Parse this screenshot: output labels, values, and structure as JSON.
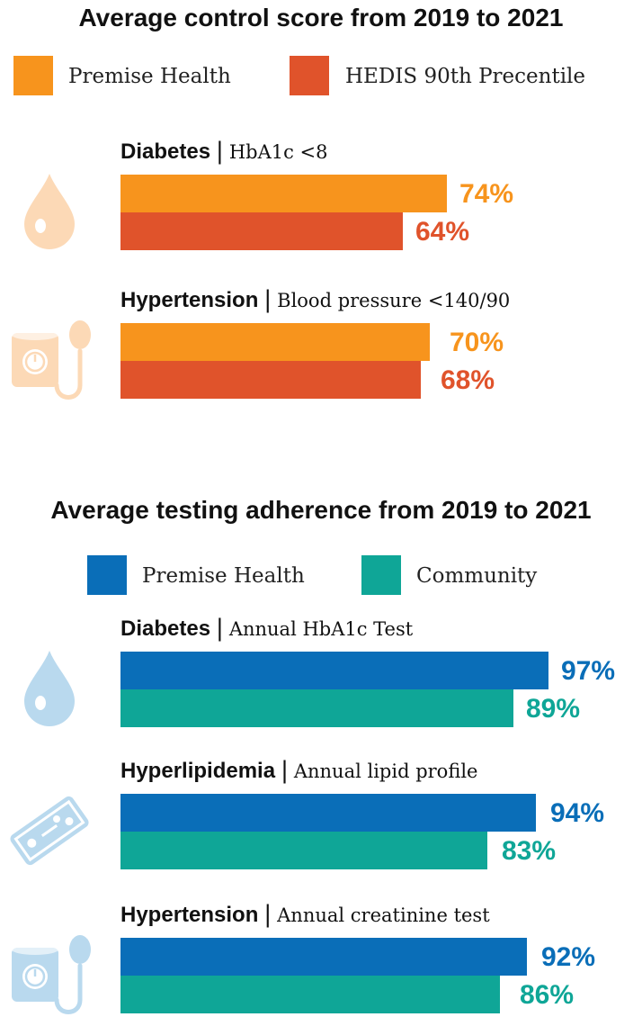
{
  "chart_data": [
    {
      "type": "bar",
      "orientation": "horizontal",
      "title": "Average control score from 2019 to 2021",
      "legend_position": "top",
      "unit": "%",
      "series": [
        {
          "name": "Premise Health",
          "color": "#F7941D"
        },
        {
          "name": "HEDIS 90th Precentile",
          "color": "#E0532B"
        }
      ],
      "groups": [
        {
          "category": "Diabetes",
          "metric": "HbA1c <8",
          "icon": "blood-drop-icon",
          "values": [
            74,
            64
          ],
          "labels": [
            "74%",
            "64%"
          ]
        },
        {
          "category": "Hypertension",
          "metric": "Blood pressure <140/90",
          "icon": "blood-pressure-cuff-icon",
          "values": [
            70,
            68
          ],
          "labels": [
            "70%",
            "68%"
          ]
        }
      ],
      "icon_color": "#FCD9B6"
    },
    {
      "type": "bar",
      "orientation": "horizontal",
      "title": "Average testing adherence from 2019 to 2021",
      "legend_position": "top",
      "unit": "%",
      "series": [
        {
          "name": "Premise Health",
          "color": "#0A6EB8"
        },
        {
          "name": "Community",
          "color": "#0FA697"
        }
      ],
      "groups": [
        {
          "category": "Diabetes",
          "metric": "Annual HbA1c Test",
          "icon": "blood-drop-icon",
          "values": [
            97,
            89
          ],
          "labels": [
            "97%",
            "89%"
          ]
        },
        {
          "category": "Hyperlipidemia",
          "metric": "Annual lipid profile",
          "icon": "lipid-test-slide-icon",
          "values": [
            94,
            83
          ],
          "labels": [
            "94%",
            "83%"
          ]
        },
        {
          "category": "Hypertension",
          "metric": "Annual creatinine test",
          "icon": "blood-pressure-cuff-icon",
          "values": [
            92,
            86
          ],
          "labels": [
            "92%",
            "86%"
          ]
        }
      ],
      "icon_color": "#B9D9EE"
    }
  ]
}
